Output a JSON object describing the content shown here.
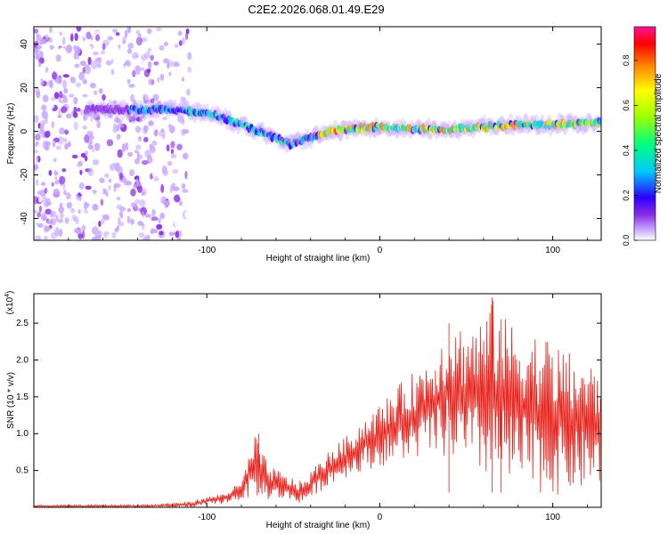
{
  "title": "C2E2.2026.068.01.49.E29",
  "chart_data": [
    {
      "type": "heatmap",
      "title": "C2E2.2026.068.01.49.E29",
      "xlabel": "Height of straight line (km)",
      "ylabel": "Frequency (Hz)",
      "xlim": [
        -200,
        128
      ],
      "ylim": [
        -50,
        48
      ],
      "xticks": [
        -100,
        0,
        100
      ],
      "yticks": [
        -40,
        -20,
        0,
        20,
        40
      ],
      "ridge": {
        "x": [
          -185,
          -165,
          -150,
          -140,
          -130,
          -120,
          -110,
          -100,
          -90,
          -80,
          -70,
          -60,
          -52,
          -45,
          -40,
          -30,
          -20,
          -10,
          0,
          20,
          40,
          60,
          80,
          100,
          128
        ],
        "frequency": [
          10,
          10,
          10,
          10,
          10,
          10,
          9,
          8,
          6,
          3,
          0,
          -3,
          -6,
          -4,
          -3,
          0,
          1,
          1.5,
          2,
          1,
          1,
          2,
          3,
          3,
          4
        ]
      },
      "noise_region_x": [
        -200,
        -110
      ],
      "colorbar": {
        "label": "Normalized spectral amplitude",
        "range": [
          0.0,
          0.95
        ],
        "ticks": [
          "0.0",
          "0.2",
          "0.4",
          "0.6",
          "0.8"
        ],
        "colormap": [
          "#ffffff",
          "#c8a8ff",
          "#8a2be2",
          "#2a00ff",
          "#00c8ff",
          "#00ff80",
          "#9fff00",
          "#ffff00",
          "#ff8000",
          "#ff0000",
          "#ff1493"
        ]
      }
    },
    {
      "type": "line",
      "xlabel": "Height of straight line (km)",
      "ylabel": "SNR (10 * v/v)",
      "scale_label": "(x10",
      "scale_exp": "4",
      "scale_close": ")",
      "xlim": [
        -200,
        128
      ],
      "ylim": [
        0,
        2.9
      ],
      "xticks": [
        -100,
        0,
        100
      ],
      "yticks": [
        "0.5",
        "1.0",
        "1.5",
        "2.0",
        "2.5"
      ],
      "color": "#e8231c",
      "envelope": {
        "x": [
          -200,
          -130,
          -110,
          -90,
          -80,
          -72,
          -65,
          -55,
          -45,
          -38,
          -30,
          -20,
          -10,
          0,
          10,
          20,
          30,
          40,
          50,
          60,
          65,
          70,
          80,
          90,
          100,
          110,
          120,
          128
        ],
        "low": [
          0.0,
          0.0,
          0.0,
          0.05,
          0.1,
          0.15,
          0.1,
          0.1,
          0.05,
          0.15,
          0.3,
          0.4,
          0.5,
          0.55,
          0.6,
          0.65,
          0.7,
          0.65,
          0.5,
          0.4,
          0.35,
          0.3,
          0.25,
          0.2,
          0.15,
          0.2,
          0.25,
          0.3
        ],
        "high": [
          0.03,
          0.04,
          0.08,
          0.2,
          0.35,
          1.0,
          0.6,
          0.45,
          0.35,
          0.55,
          0.75,
          0.95,
          1.2,
          1.4,
          1.65,
          1.85,
          2.1,
          2.5,
          2.5,
          2.6,
          2.85,
          2.6,
          2.5,
          2.4,
          2.3,
          2.1,
          2.0,
          1.85
        ]
      },
      "peaks": [
        {
          "x": -70,
          "y": 1.0
        },
        {
          "x": 40,
          "y": 2.5
        },
        {
          "x": 65,
          "y": 2.85
        },
        {
          "x": 70,
          "y": 2.55
        }
      ]
    }
  ]
}
